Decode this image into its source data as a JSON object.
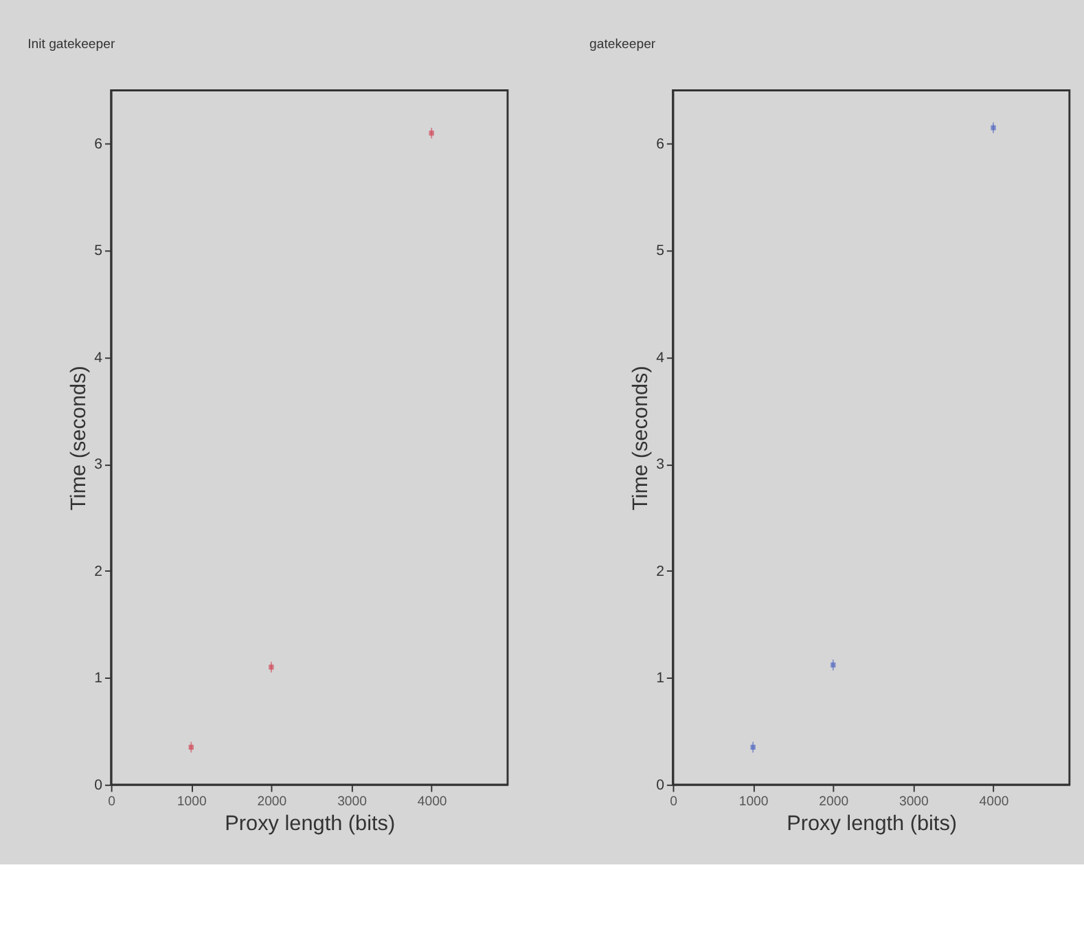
{
  "chart_data": [
    {
      "type": "scatter",
      "title": "Init gatekeeper",
      "xlabel": "Proxy length (bits)",
      "ylabel": "Time (seconds)",
      "x": [
        1000,
        2000,
        4000
      ],
      "series": [
        {
          "color": "#d04858",
          "values": [
            0.35,
            1.1,
            6.1
          ],
          "errors": [
            0.05,
            0.05,
            0.05
          ]
        }
      ],
      "xlim": [
        0,
        4950
      ],
      "xticks": [
        0,
        1000,
        2000,
        3000,
        4000
      ],
      "ylim": [
        0,
        6.5
      ],
      "yticks": [
        0,
        1,
        2,
        3,
        4,
        5,
        6
      ],
      "marker": "square",
      "grid": false
    },
    {
      "type": "scatter",
      "title": "gatekeeper",
      "xlabel": "Proxy length (bits)",
      "ylabel": "Time (seconds)",
      "x": [
        1000,
        2000,
        4000
      ],
      "series": [
        {
          "color": "#5068c0",
          "values": [
            0.35,
            1.12,
            6.15
          ],
          "errors": [
            0.05,
            0.05,
            0.05
          ]
        }
      ],
      "xlim": [
        0,
        4950
      ],
      "xticks": [
        0,
        1000,
        2000,
        3000,
        4000
      ],
      "ylim": [
        0,
        6.5
      ],
      "yticks": [
        0,
        1,
        2,
        3,
        4,
        5,
        6
      ],
      "marker": "square",
      "grid": false
    }
  ]
}
